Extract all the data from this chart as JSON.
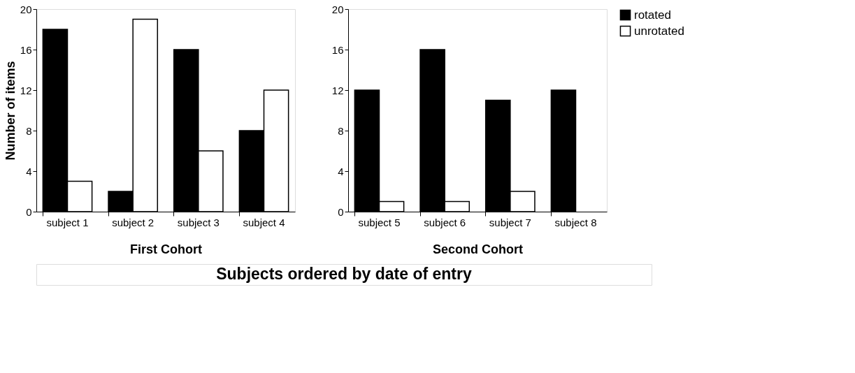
{
  "chart_data": [
    {
      "type": "bar",
      "xlabel": "First Cohort",
      "ylabel": "Number of items",
      "categories": [
        "subject 1",
        "subject 2",
        "subject 3",
        "subject 4"
      ],
      "series": [
        {
          "color": "#000000",
          "values": [
            18,
            2,
            16,
            8
          ]
        },
        {
          "color": "#ffffff",
          "values": [
            3,
            19,
            6,
            12
          ]
        }
      ],
      "ylim": [
        0,
        20
      ],
      "yticks": [
        0,
        4,
        8,
        12,
        16,
        20
      ],
      "grid": false,
      "legend": false,
      "annotations": [
        "Subjects ordered by date of entry"
      ]
    },
    {
      "type": "bar",
      "xlabel": "Second Cohort",
      "categories": [
        "subject 5",
        "subject 6",
        "subject 7",
        "subject 8"
      ],
      "series": [
        {
          "name": "rotated",
          "color": "#000000",
          "values": [
            12,
            16,
            11,
            12
          ]
        },
        {
          "name": "unrotated",
          "color": "#ffffff",
          "values": [
            1,
            1,
            2,
            0
          ]
        }
      ],
      "ylim": [
        0,
        20
      ],
      "yticks": [
        0,
        4,
        8,
        12,
        16,
        20
      ],
      "grid": false,
      "legend": "right"
    }
  ]
}
